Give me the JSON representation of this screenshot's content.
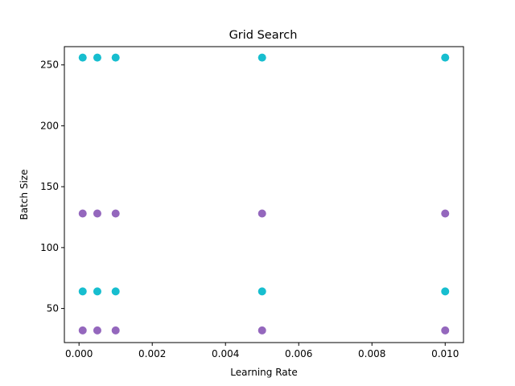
{
  "chart_data": {
    "type": "scatter",
    "title": "Grid Search",
    "xlabel": "Learning Rate",
    "ylabel": "Batch Size",
    "xlim": [
      -0.0004,
      0.0105
    ],
    "ylim": [
      22,
      265
    ],
    "xticks": [
      0.0,
      0.002,
      0.004,
      0.006,
      0.008,
      0.01
    ],
    "xtick_labels": [
      "0.000",
      "0.002",
      "0.004",
      "0.006",
      "0.008",
      "0.010"
    ],
    "yticks": [
      50,
      100,
      150,
      200,
      250
    ],
    "ytick_labels": [
      "50",
      "100",
      "150",
      "200",
      "250"
    ],
    "grid": false,
    "series": [
      {
        "color": "#17becf",
        "points": [
          {
            "x": 0.0001,
            "y": 256
          },
          {
            "x": 0.0005,
            "y": 256
          },
          {
            "x": 0.001,
            "y": 256
          },
          {
            "x": 0.005,
            "y": 256
          },
          {
            "x": 0.01,
            "y": 256
          },
          {
            "x": 0.0001,
            "y": 64
          },
          {
            "x": 0.0005,
            "y": 64
          },
          {
            "x": 0.001,
            "y": 64
          },
          {
            "x": 0.005,
            "y": 64
          },
          {
            "x": 0.01,
            "y": 64
          }
        ]
      },
      {
        "color": "#9467bd",
        "points": [
          {
            "x": 0.0001,
            "y": 128
          },
          {
            "x": 0.0005,
            "y": 128
          },
          {
            "x": 0.001,
            "y": 128
          },
          {
            "x": 0.005,
            "y": 128
          },
          {
            "x": 0.01,
            "y": 128
          },
          {
            "x": 0.0001,
            "y": 32
          },
          {
            "x": 0.0005,
            "y": 32
          },
          {
            "x": 0.001,
            "y": 32
          },
          {
            "x": 0.005,
            "y": 32
          },
          {
            "x": 0.01,
            "y": 32
          }
        ]
      }
    ]
  }
}
